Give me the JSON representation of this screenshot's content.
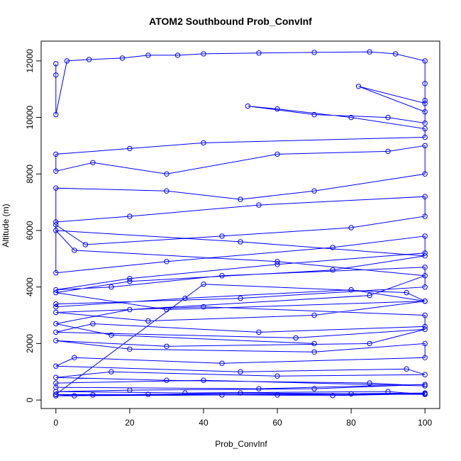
{
  "chart_data": {
    "type": "line",
    "title": "ATOM2 Southbound Prob_ConvInf",
    "xlabel": "Prob_ConvInf",
    "ylabel": "Altitude (m)",
    "xlim": [
      -4,
      104
    ],
    "ylim": [
      -300,
      12700
    ],
    "xticks": [
      0,
      20,
      40,
      60,
      80,
      100
    ],
    "yticks": [
      0,
      2000,
      4000,
      6000,
      8000,
      10000,
      12000
    ],
    "grid": false,
    "legend": "none",
    "marker": "open-circle",
    "line_color": "#0000ff",
    "series": [
      {
        "x": [
          0,
          0,
          0,
          3,
          9,
          18,
          25,
          33,
          40,
          55,
          70,
          85,
          92,
          100,
          100,
          100,
          100,
          82,
          100,
          100,
          90,
          70,
          52,
          60,
          80,
          100,
          100,
          40,
          20,
          0,
          0,
          10,
          30,
          60,
          90,
          100,
          100,
          70,
          50,
          30,
          0,
          0,
          20,
          55,
          100,
          100,
          80,
          45,
          8,
          0,
          0,
          30,
          75,
          100,
          100,
          60,
          20,
          0,
          15,
          45,
          100,
          100,
          50,
          0,
          0,
          35,
          80,
          100,
          70,
          25,
          0,
          40,
          100,
          100,
          55,
          10,
          0,
          65,
          100,
          85,
          30,
          0,
          20,
          70,
          100,
          100,
          45,
          5,
          0,
          50,
          95,
          100,
          60,
          15,
          0,
          30,
          85,
          100,
          40,
          0,
          0,
          55,
          100,
          70,
          20,
          0,
          35,
          90,
          100,
          50,
          5,
          0,
          60,
          100,
          75,
          25,
          0,
          45,
          100,
          80,
          10,
          0,
          40,
          95,
          100,
          30,
          0,
          20,
          75,
          100,
          50,
          0,
          5,
          60,
          100,
          85,
          20,
          0,
          15,
          70
        ],
        "y": [
          11900,
          11500,
          10100,
          12000,
          12050,
          12100,
          12200,
          12200,
          12250,
          12280,
          12300,
          12320,
          12250,
          12000,
          11200,
          10600,
          10200,
          11100,
          10500,
          9800,
          10000,
          10100,
          10400,
          10300,
          10000,
          9600,
          9300,
          9100,
          8900,
          8700,
          8100,
          8400,
          8000,
          8700,
          8800,
          9000,
          8000,
          7400,
          7100,
          7400,
          7500,
          6300,
          6500,
          6900,
          7200,
          6500,
          6100,
          5800,
          5500,
          6200,
          4500,
          4900,
          5400,
          5800,
          5200,
          4800,
          4300,
          3900,
          4000,
          4400,
          4700,
          4000,
          3600,
          3400,
          3300,
          3600,
          3900,
          3500,
          3000,
          2800,
          3100,
          3300,
          3000,
          2600,
          2400,
          2700,
          2400,
          2200,
          2500,
          2000,
          1900,
          2100,
          1800,
          1700,
          2000,
          1500,
          1300,
          1500,
          1200,
          1000,
          1100,
          900,
          850,
          1000,
          800,
          700,
          600,
          500,
          700,
          600,
          450,
          400,
          550,
          400,
          350,
          300,
          250,
          300,
          200,
          250,
          150,
          200,
          180,
          220,
          160,
          200,
          150,
          180,
          250,
          220,
          180,
          200,
          4100,
          3800,
          3500,
          3200,
          3800,
          4200,
          4600,
          5100,
          5600,
          6000,
          5300,
          4900,
          4400,
          3700,
          3200,
          2700,
          2300,
          2000
        ]
      }
    ]
  }
}
